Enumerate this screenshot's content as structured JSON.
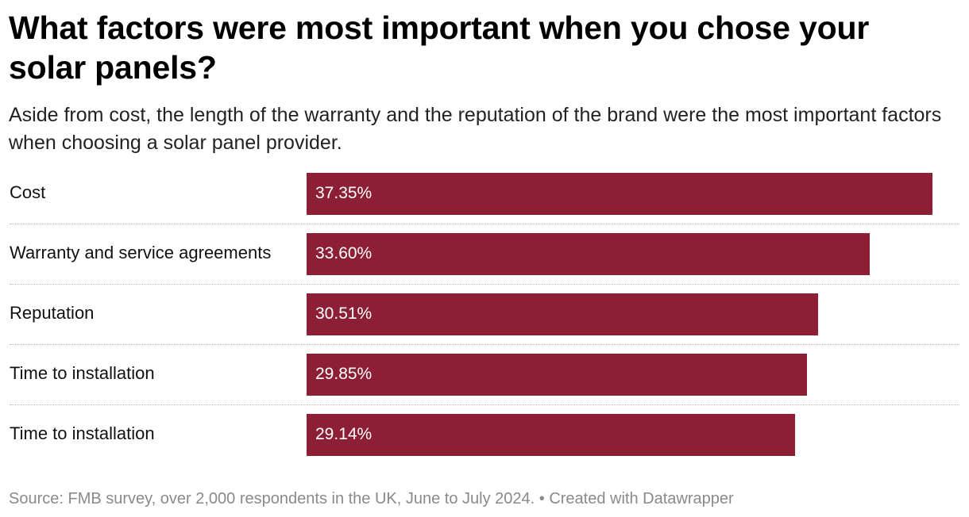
{
  "header": {
    "title": "What factors were most important when you chose your solar panels?",
    "subtitle": "Aside from cost, the length of the warranty and the reputation of the brand were the most important factors when choosing a solar panel provider."
  },
  "chart_data": {
    "type": "bar",
    "orientation": "horizontal",
    "title": "What factors were most important when you chose your solar panels?",
    "subtitle": "Aside from cost, the length of the warranty and the reputation of the brand were the most important factors when choosing a solar panel provider.",
    "categories": [
      "Cost",
      "Warranty and service agreements",
      "Reputation",
      "Time to installation",
      "Time to installation"
    ],
    "values": [
      37.35,
      33.6,
      30.51,
      29.85,
      29.14
    ],
    "value_labels": [
      "37.35%",
      "33.60%",
      "30.51%",
      "29.85%",
      "29.14%"
    ],
    "unit": "%",
    "xlim": [
      0,
      37.35
    ],
    "grid": false,
    "legend": "none",
    "bar_color": "#8c1f35"
  },
  "footer": {
    "source": "Source: FMB survey, over 2,000 respondents in the UK, June to July 2024. • Created with Datawrapper"
  },
  "colors": {
    "bar": "#8c1f35",
    "bar_text": "#ffffff",
    "footer_text": "#8a8a8a",
    "divider": "#b8b8b8"
  }
}
